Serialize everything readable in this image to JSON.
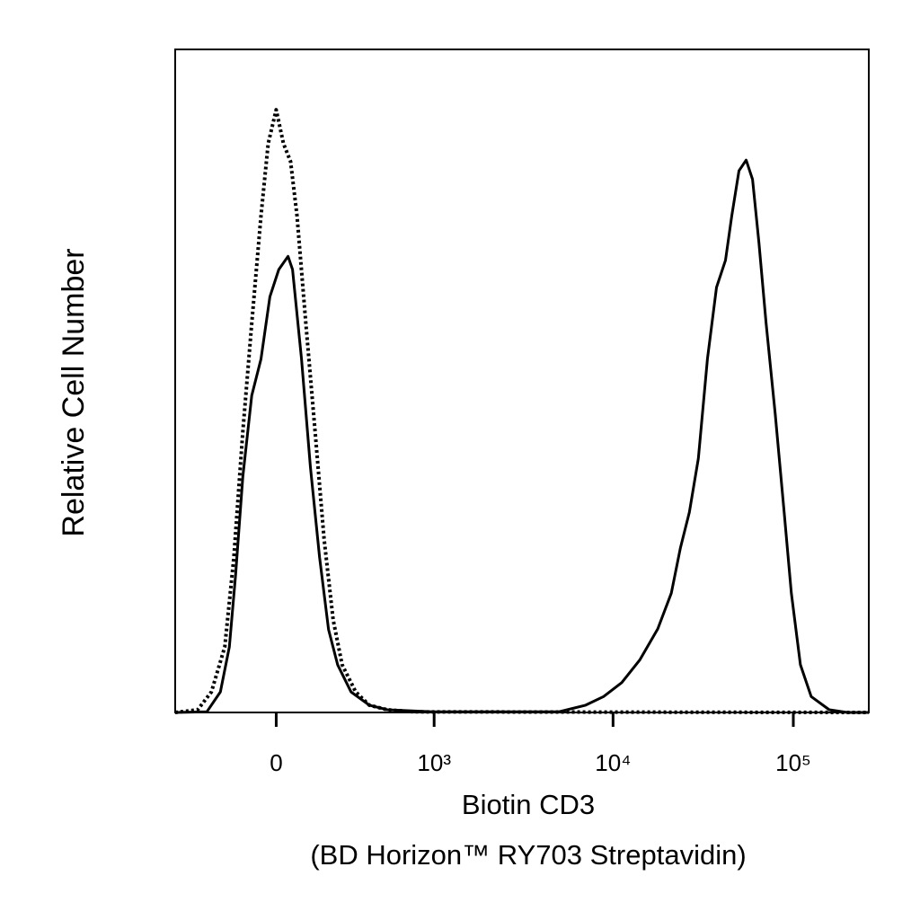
{
  "chart_data": {
    "type": "line",
    "ylabel": "Relative Cell Number",
    "xlabel": [
      "Biotin CD3",
      "(BD Horizon™ RY703 Streptavidin)"
    ],
    "xscale": "biexponential",
    "xlim": [
      -455,
      262144
    ],
    "ylim": [
      0,
      100
    ],
    "xticks": [
      0,
      {
        "value": 1000,
        "label": "10³"
      },
      {
        "value": 10000,
        "label": "10⁴"
      },
      {
        "value": 100000,
        "label": "10⁵"
      }
    ],
    "series": [
      {
        "color": "#000000",
        "line_style": "solid",
        "x": [
          -455,
          -273,
          -210,
          -172,
          -147,
          -119,
          -86,
          -53,
          -22,
          9,
          41,
          57,
          89,
          122,
          158,
          195,
          235,
          300,
          404,
          528,
          976,
          4990,
          7040,
          8860,
          11170,
          14060,
          17700,
          21050,
          23630,
          26500,
          29750,
          33390,
          37480,
          42060,
          45580,
          49970,
          54770,
          59400,
          64420,
          70620,
          79270,
          88970,
          97530,
          109460,
          125690,
          158160,
          199050,
          262144
        ],
        "values": [
          0,
          0.1,
          3.1,
          9.9,
          20.7,
          35.6,
          47.8,
          53.3,
          62.7,
          66.8,
          68.8,
          66.8,
          53.3,
          37.0,
          23.4,
          12.5,
          7.2,
          3.1,
          1.1,
          0.4,
          0.1,
          0.1,
          1.1,
          2.4,
          4.5,
          7.9,
          12.6,
          18.0,
          24.8,
          30.2,
          38.3,
          53.3,
          64.1,
          68.2,
          74.9,
          81.7,
          83.3,
          80.4,
          70.9,
          58.7,
          45.1,
          30.2,
          18.0,
          7.2,
          2.4,
          0.4,
          0,
          0
        ]
      },
      {
        "color": "#000000",
        "line_style": "dotted",
        "x": [
          -455,
          -320,
          -251,
          -191,
          -154,
          -119,
          -86,
          -53,
          -28,
          0,
          25,
          50,
          73,
          105,
          140,
          176,
          215,
          256,
          325,
          404,
          528,
          764,
          262144
        ],
        "values": [
          0,
          0.4,
          3.1,
          9.9,
          23.4,
          42.4,
          58.7,
          74.9,
          85.8,
          90.9,
          85.8,
          83.1,
          74.9,
          58.7,
          42.4,
          26.2,
          14.0,
          7.2,
          3.1,
          1.1,
          0.4,
          0.1,
          0
        ]
      }
    ]
  }
}
